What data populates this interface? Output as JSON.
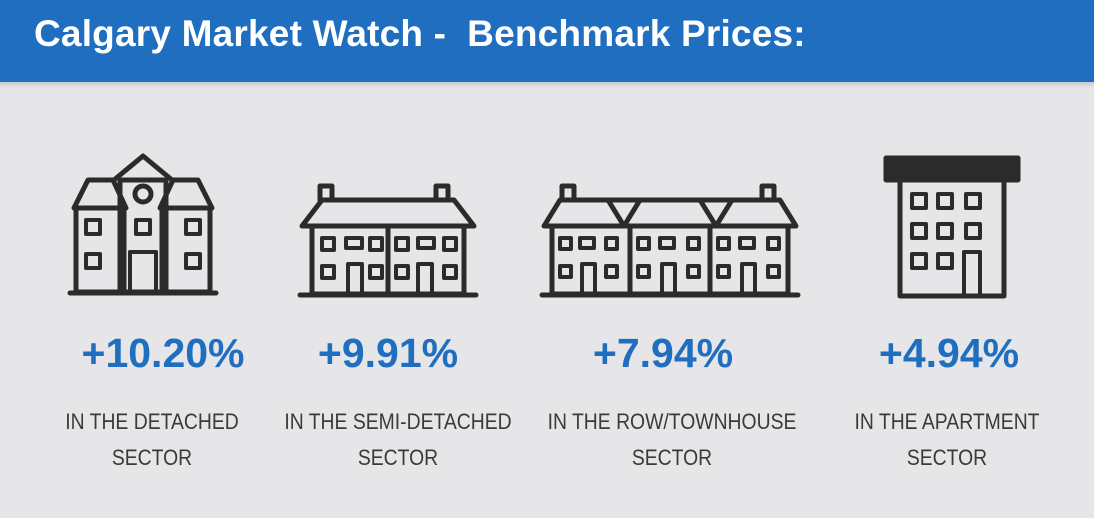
{
  "header": {
    "title": "Calgary Market Watch -  Benchmark Prices:"
  },
  "sectors": [
    {
      "icon": "detached-house-icon",
      "change": "+10.20%",
      "line1": "IN THE DETACHED",
      "line2": "SECTOR"
    },
    {
      "icon": "semi-detached-house-icon",
      "change": "+9.91%",
      "line1": "IN THE SEMI-DETACHED",
      "line2": "SECTOR"
    },
    {
      "icon": "row-townhouse-icon",
      "change": "+7.94%",
      "line1": "IN THE ROW/TOWNHOUSE",
      "line2": "SECTOR"
    },
    {
      "icon": "apartment-building-icon",
      "change": "+4.94%",
      "line1": "IN THE APARTMENT",
      "line2": "SECTOR"
    }
  ],
  "colors": {
    "header": "#1f6ec0",
    "accent": "#1f6ec0",
    "background": "#e6e6e8"
  }
}
